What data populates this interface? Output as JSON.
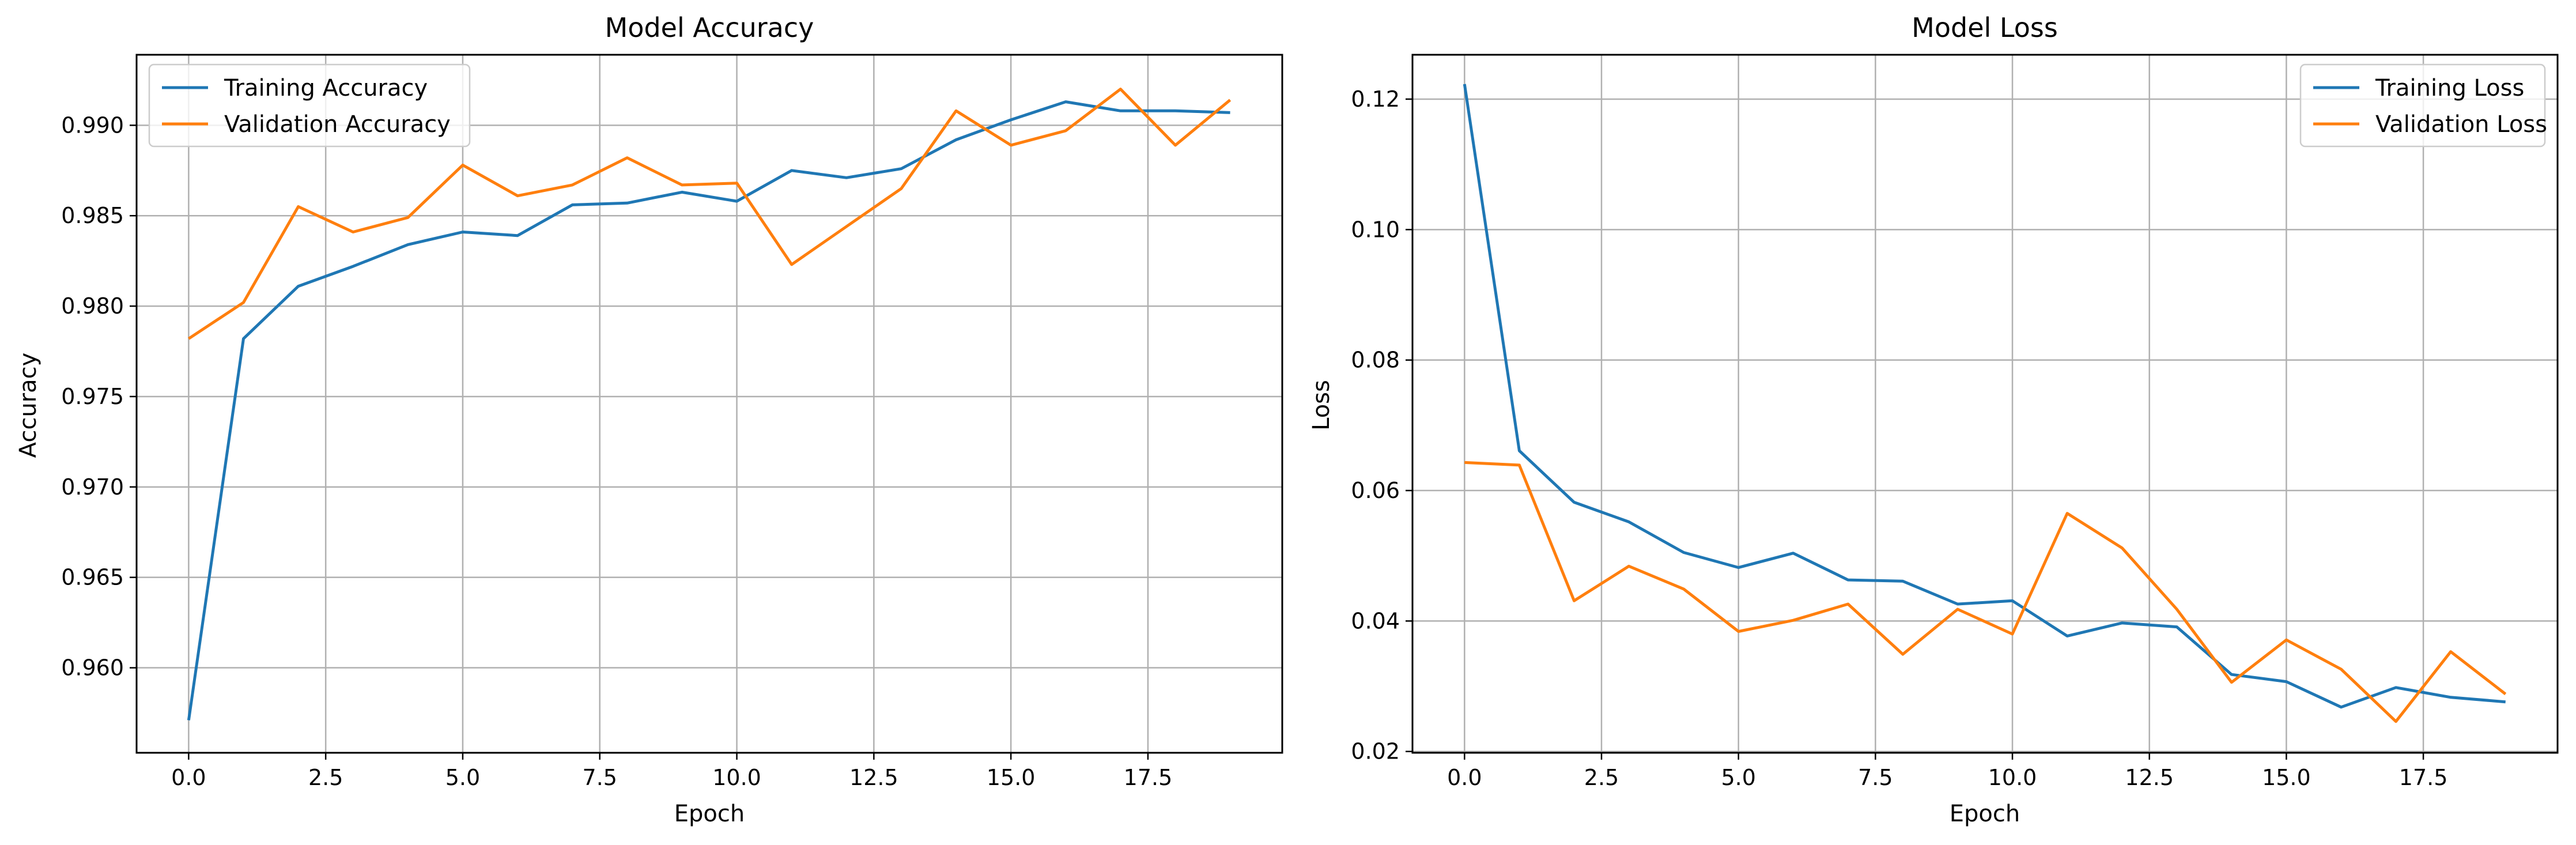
{
  "colors": {
    "training": "#1f77b4",
    "validation": "#ff7f0e",
    "grid": "#b0b0b0",
    "axes": "#000000"
  },
  "chart_data": [
    {
      "type": "line",
      "title": "Model Accuracy",
      "xlabel": "Epoch",
      "ylabel": "Accuracy",
      "xlim": [
        -0.95,
        19.95
      ],
      "ylim": [
        0.9553,
        0.9939
      ],
      "xticks": [
        0.0,
        2.5,
        5.0,
        7.5,
        10.0,
        12.5,
        15.0,
        17.5
      ],
      "xtick_labels": [
        "0.0",
        "2.5",
        "5.0",
        "7.5",
        "10.0",
        "12.5",
        "15.0",
        "17.5"
      ],
      "yticks": [
        0.96,
        0.965,
        0.97,
        0.975,
        0.98,
        0.985,
        0.99
      ],
      "ytick_labels": [
        "0.960",
        "0.965",
        "0.970",
        "0.975",
        "0.980",
        "0.985",
        "0.990"
      ],
      "grid": true,
      "legend_position": "upper-left",
      "x": [
        0,
        1,
        2,
        3,
        4,
        5,
        6,
        7,
        8,
        9,
        10,
        11,
        12,
        13,
        14,
        15,
        16,
        17,
        18,
        19
      ],
      "series": [
        {
          "name": "Training Accuracy",
          "color": "#1f77b4",
          "values": [
            0.9571,
            0.9782,
            0.9811,
            0.9822,
            0.9834,
            0.9841,
            0.9839,
            0.9856,
            0.9857,
            0.9863,
            0.9858,
            0.9875,
            0.9871,
            0.9876,
            0.9892,
            0.9903,
            0.9913,
            0.9908,
            0.9908,
            0.9907
          ]
        },
        {
          "name": "Validation Accuracy",
          "color": "#ff7f0e",
          "values": [
            0.9782,
            0.9802,
            0.9855,
            0.9841,
            0.9849,
            0.9878,
            0.9861,
            0.9867,
            0.9882,
            0.9867,
            0.9868,
            0.9823,
            0.9844,
            0.9865,
            0.9908,
            0.9889,
            0.9897,
            0.992,
            0.9889,
            0.9914
          ]
        }
      ]
    },
    {
      "type": "line",
      "title": "Model Loss",
      "xlabel": "Epoch",
      "ylabel": "Loss",
      "xlim": [
        -0.95,
        19.95
      ],
      "ylim": [
        0.0198,
        0.1268
      ],
      "xticks": [
        0.0,
        2.5,
        5.0,
        7.5,
        10.0,
        12.5,
        15.0,
        17.5
      ],
      "xtick_labels": [
        "0.0",
        "2.5",
        "5.0",
        "7.5",
        "10.0",
        "12.5",
        "15.0",
        "17.5"
      ],
      "yticks": [
        0.02,
        0.04,
        0.06,
        0.08,
        0.1,
        0.12
      ],
      "ytick_labels": [
        "0.02",
        "0.04",
        "0.06",
        "0.08",
        "0.10",
        "0.12"
      ],
      "grid": true,
      "legend_position": "upper-right",
      "x": [
        0,
        1,
        2,
        3,
        4,
        5,
        6,
        7,
        8,
        9,
        10,
        11,
        12,
        13,
        14,
        15,
        16,
        17,
        18,
        19
      ],
      "series": [
        {
          "name": "Training Loss",
          "color": "#1f77b4",
          "values": [
            0.1223,
            0.0661,
            0.0582,
            0.0552,
            0.0505,
            0.0482,
            0.0504,
            0.0463,
            0.0461,
            0.0426,
            0.0431,
            0.0377,
            0.0397,
            0.0391,
            0.0318,
            0.0307,
            0.0268,
            0.0298,
            0.0283,
            0.0276
          ]
        },
        {
          "name": "Validation Loss",
          "color": "#ff7f0e",
          "values": [
            0.0643,
            0.0639,
            0.0431,
            0.0484,
            0.0449,
            0.0384,
            0.0401,
            0.0426,
            0.0349,
            0.0418,
            0.038,
            0.0565,
            0.0512,
            0.0418,
            0.0306,
            0.0371,
            0.0326,
            0.0246,
            0.0353,
            0.0288
          ]
        }
      ]
    }
  ]
}
